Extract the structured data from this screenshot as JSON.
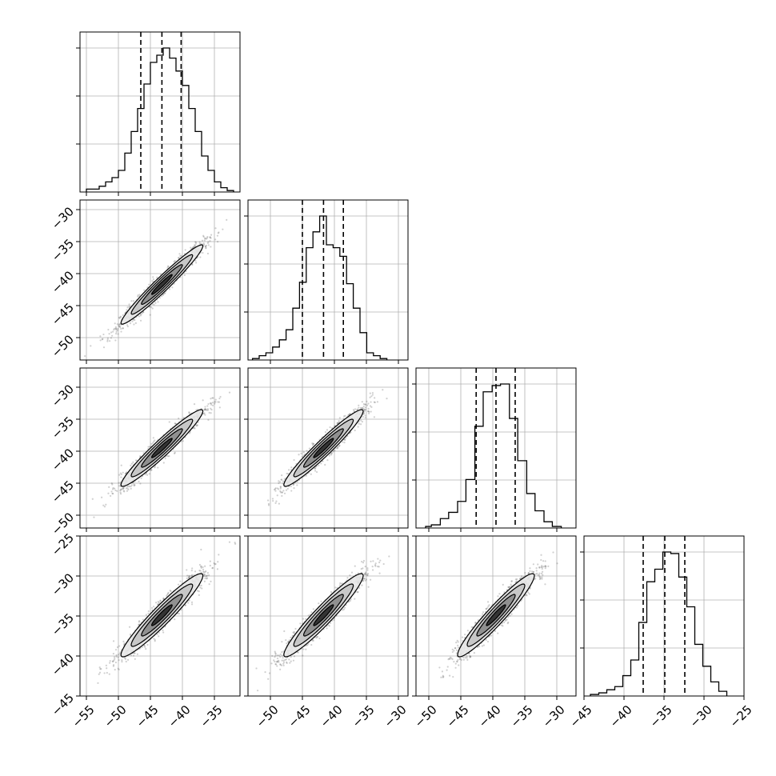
{
  "chart_data": {
    "type": "corner",
    "grid": true,
    "variables": [
      {
        "range": [
          -56,
          -31
        ],
        "ticks": [
          -55,
          -50,
          -45,
          -40,
          -35
        ],
        "tick_labels": [
          "−55",
          "−50",
          "−45",
          "−40",
          "−35"
        ]
      },
      {
        "range": [
          -53.5,
          -28.5
        ],
        "ticks": [
          -50,
          -45,
          -40,
          -35,
          -30
        ],
        "tick_labels": [
          "−50",
          "−45",
          "−40",
          "−35",
          "−30"
        ]
      },
      {
        "range": [
          -52,
          -27
        ],
        "ticks": [
          -50,
          -45,
          -40,
          -35,
          -30
        ],
        "tick_labels": [
          "−50",
          "−45",
          "−40",
          "−35",
          "−30"
        ]
      },
      {
        "range": [
          -45,
          -25
        ],
        "ticks": [
          -45,
          -40,
          -35,
          -30,
          -25
        ],
        "tick_labels": [
          "−45",
          "−40",
          "−35",
          "−30",
          "−25"
        ]
      }
    ],
    "marginals": [
      {
        "quantiles": [
          -46.5,
          -43.2,
          -40.2
        ],
        "bin_edges": [
          -55.0,
          -54.0,
          -53.0,
          -52.0,
          -51.0,
          -50.0,
          -49.0,
          -48.0,
          -47.0,
          -46.0,
          -45.0,
          -44.0,
          -43.0,
          -42.0,
          -41.0,
          -40.0,
          -39.0,
          -38.0,
          -37.0,
          -36.0,
          -35.0,
          -34.0,
          -33.0,
          -32.0
        ],
        "counts": [
          2,
          2,
          4,
          7,
          10,
          15,
          27,
          42,
          58,
          75,
          90,
          95,
          100,
          93,
          84,
          74,
          58,
          42,
          25,
          15,
          7,
          3,
          1
        ]
      },
      {
        "quantiles": [
          -45.0,
          -41.7,
          -38.6
        ],
        "bin_edges": [
          -52.8,
          -51.75,
          -50.7,
          -49.65,
          -48.6,
          -47.55,
          -46.5,
          -45.45,
          -44.4,
          -43.35,
          -42.3,
          -41.25,
          -40.2,
          -39.15,
          -38.1,
          -37.05,
          -36.0,
          -34.95,
          -33.9,
          -32.85,
          -31.8
        ],
        "counts": [
          1,
          3,
          5,
          9,
          14,
          21,
          36,
          54,
          78,
          89,
          100,
          80,
          78,
          72,
          53,
          36,
          19,
          5,
          3,
          1
        ]
      },
      {
        "quantiles": [
          -42.6,
          -39.5,
          -36.5
        ],
        "bin_edges": [
          -50.5,
          -49.6,
          -48.2,
          -46.9,
          -45.5,
          -44.2,
          -42.8,
          -41.5,
          -40.1,
          -38.8,
          -37.4,
          -36.1,
          -34.7,
          -33.4,
          -32.0,
          -30.7,
          -29.3
        ],
        "counts": [
          1,
          2,
          6,
          10,
          17,
          31,
          65,
          87,
          91,
          92,
          70,
          43,
          22,
          11,
          4,
          1
        ]
      },
      {
        "quantiles": [
          -37.6,
          -34.9,
          -32.4
        ],
        "bin_edges": [
          -44.2,
          -43.15,
          -42.15,
          -41.15,
          -40.15,
          -39.15,
          -38.15,
          -37.15,
          -36.15,
          -35.15,
          -34.15,
          -33.15,
          -32.15,
          -31.15,
          -30.15,
          -29.15,
          -28.15,
          -27.15
        ],
        "counts": [
          1,
          2,
          4,
          6,
          13,
          23,
          47,
          73,
          81,
          92,
          91,
          76,
          57,
          33,
          19,
          9,
          3
        ]
      }
    ],
    "pairs": [
      {
        "x_var": 0,
        "y_var": 1,
        "mean": [
          -43.2,
          -41.7
        ],
        "sd": [
          3.2,
          3.1
        ],
        "rho": 0.97
      },
      {
        "x_var": 0,
        "y_var": 2,
        "mean": [
          -43.2,
          -39.5
        ],
        "sd": [
          3.2,
          3.0
        ],
        "rho": 0.96
      },
      {
        "x_var": 1,
        "y_var": 2,
        "mean": [
          -41.7,
          -39.5
        ],
        "sd": [
          3.1,
          3.0
        ],
        "rho": 0.96
      },
      {
        "x_var": 0,
        "y_var": 3,
        "mean": [
          -43.2,
          -34.9
        ],
        "sd": [
          3.2,
          2.6
        ],
        "rho": 0.95
      },
      {
        "x_var": 1,
        "y_var": 3,
        "mean": [
          -41.7,
          -34.9
        ],
        "sd": [
          3.1,
          2.6
        ],
        "rho": 0.95
      },
      {
        "x_var": 2,
        "y_var": 3,
        "mean": [
          -39.5,
          -34.9
        ],
        "sd": [
          3.0,
          2.6
        ],
        "rho": 0.95
      }
    ],
    "contour_levels": [
      0.5,
      1.0,
      1.5,
      2.0
    ]
  }
}
